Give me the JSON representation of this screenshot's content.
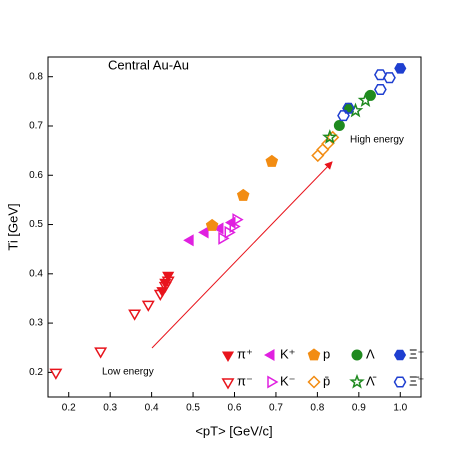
{
  "chart_data": {
    "type": "scatter",
    "title": "Central Au-Au",
    "x_label": "<pT> [GeV/c]",
    "y_label": "Ti [GeV]",
    "annotations": [
      "High energy",
      "Low energy"
    ],
    "xlim": [
      0.15,
      1.05
    ],
    "ylim": [
      0.15,
      0.84
    ],
    "xticks": [
      0.2,
      0.3,
      0.4,
      0.5,
      0.6,
      0.7,
      0.8,
      0.9,
      {
        "value": 1.0,
        "label": "1.0"
      }
    ],
    "yticks": [
      0.2,
      0.3,
      0.4,
      0.5,
      0.6,
      0.7,
      0.8
    ],
    "series": [
      {
        "name": "π⁺",
        "color": "#e8141c",
        "marker": "tri-down",
        "filled": true,
        "x": [
          0.426,
          0.433,
          0.44
        ],
        "values": [
          0.366,
          0.383,
          0.397
        ]
      },
      {
        "name": "K⁺",
        "color": "#e020e0",
        "marker": "tri-left",
        "filled": true,
        "x": [
          0.493,
          0.529,
          0.565,
          0.594
        ],
        "values": [
          0.468,
          0.484,
          0.492,
          0.504
        ]
      },
      {
        "name": "p",
        "color": "#f28c12",
        "marker": "pentagon",
        "filled": true,
        "x": [
          0.546,
          0.621,
          0.69
        ],
        "values": [
          0.498,
          0.559,
          0.628
        ]
      },
      {
        "name": "Λ",
        "color": "#1f8a1f",
        "marker": "circle",
        "filled": true,
        "x": [
          0.853,
          0.875,
          0.928
        ],
        "values": [
          0.701,
          0.736,
          0.762
        ]
      },
      {
        "name": "Ξ⁻",
        "color": "#1f3fd0",
        "marker": "hexagon",
        "filled": true,
        "x": [
          1.0
        ],
        "values": [
          0.817
        ]
      },
      {
        "name": "π⁻",
        "color": "#e8141c",
        "marker": "tri-down",
        "filled": false,
        "x": [
          0.169,
          0.277,
          0.359,
          0.392,
          0.421,
          0.433,
          0.44
        ],
        "values": [
          0.2,
          0.243,
          0.32,
          0.338,
          0.36,
          0.376,
          0.387
        ]
      },
      {
        "name": "K⁻",
        "color": "#e020e0",
        "marker": "tri-right",
        "filled": false,
        "x": [
          0.57,
          0.585,
          0.597,
          0.604
        ],
        "values": [
          0.472,
          0.484,
          0.496,
          0.51
        ]
      },
      {
        "name": "p̄",
        "color": "#f28c12",
        "marker": "diamond",
        "filled": false,
        "x": [
          0.801,
          0.813,
          0.825,
          0.837
        ],
        "values": [
          0.64,
          0.652,
          0.664,
          0.677
        ]
      },
      {
        "name": "Λ̄",
        "color": "#1f8a1f",
        "marker": "star",
        "filled": false,
        "x": [
          0.83,
          0.892,
          0.916
        ],
        "values": [
          0.677,
          0.731,
          0.752
        ]
      },
      {
        "name": "Ξ̄⁺",
        "color": "#1f3fd0",
        "marker": "hexagon",
        "filled": false,
        "x": [
          0.863,
          0.875,
          0.952,
          0.952,
          0.974
        ],
        "values": [
          0.721,
          0.736,
          0.774,
          0.804,
          0.798
        ]
      }
    ]
  }
}
